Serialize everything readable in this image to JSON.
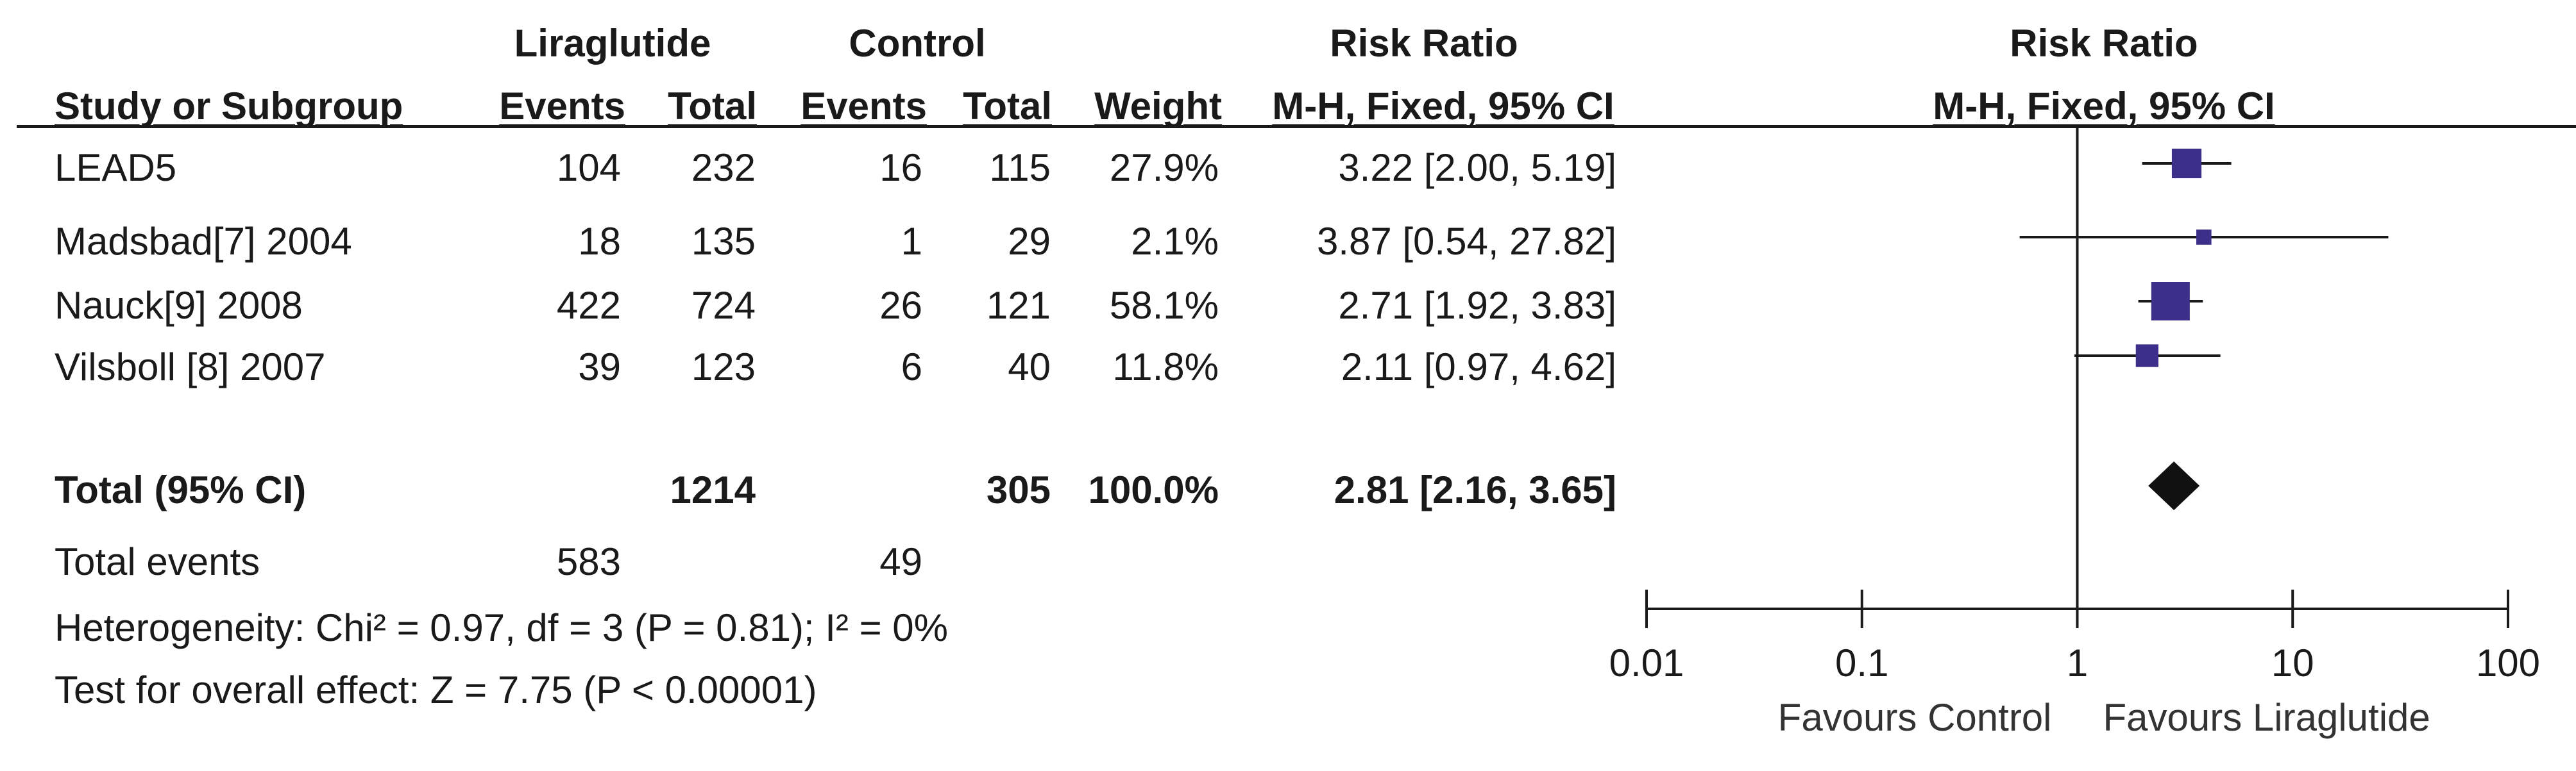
{
  "table": {
    "group_headers": {
      "experimental": "Liraglutide",
      "control": "Control",
      "effect": "Risk Ratio"
    },
    "columns": {
      "study": "Study or Subgroup",
      "exp_events": "Events",
      "exp_total": "Total",
      "ctrl_events": "Events",
      "ctrl_total": "Total",
      "weight": "Weight",
      "effect": "M-H, Fixed, 95% CI"
    },
    "studies": [
      {
        "name": "LEAD5",
        "exp_events": "104",
        "exp_total": "232",
        "ctrl_events": "16",
        "ctrl_total": "115",
        "weight": "27.9%",
        "ci_text": "3.22 [2.00, 5.19]"
      },
      {
        "name": "Madsbad[7] 2004",
        "exp_events": "18",
        "exp_total": "135",
        "ctrl_events": "1",
        "ctrl_total": "29",
        "weight": "2.1%",
        "ci_text": "3.87 [0.54, 27.82]"
      },
      {
        "name": "Nauck[9] 2008",
        "exp_events": "422",
        "exp_total": "724",
        "ctrl_events": "26",
        "ctrl_total": "121",
        "weight": "58.1%",
        "ci_text": "2.71 [1.92, 3.83]"
      },
      {
        "name": "Vilsboll [8] 2007",
        "exp_events": "39",
        "exp_total": "123",
        "ctrl_events": "6",
        "ctrl_total": "40",
        "weight": "11.8%",
        "ci_text": "2.11 [0.97, 4.62]"
      }
    ],
    "total": {
      "label": "Total (95% CI)",
      "exp_total": "1214",
      "ctrl_total": "305",
      "weight": "100.0%",
      "ci_text": "2.81 [2.16, 3.65]"
    },
    "total_events": {
      "label": "Total events",
      "exp_events": "583",
      "ctrl_events": "49"
    },
    "heterogeneity": "Heterogeneity: Chi² = 0.97, df = 3 (P = 0.81); I² = 0%",
    "overall_effect": "Test for overall effect: Z = 7.75 (P < 0.00001)"
  },
  "chart_data": {
    "type": "scatter",
    "subtype": "forest-plot",
    "title": "Risk Ratio",
    "subtitle": "M-H, Fixed, 95% CI",
    "x_scale": "log",
    "xlim": [
      0.01,
      100
    ],
    "x_ticks": [
      0.01,
      0.1,
      1,
      10,
      100
    ],
    "x_tick_labels": [
      "0.01",
      "0.1",
      "1",
      "10",
      "100"
    ],
    "reference_line": 1,
    "favours_left": "Favours Control",
    "favours_right": "Favours Liraglutide",
    "marker_color": "#3b2f8a",
    "summary_color": "#111111",
    "points": [
      {
        "study": "LEAD5",
        "estimate": 3.22,
        "lower": 2.0,
        "upper": 5.19,
        "weight": 27.9
      },
      {
        "study": "Madsbad[7] 2004",
        "estimate": 3.87,
        "lower": 0.54,
        "upper": 27.82,
        "weight": 2.1
      },
      {
        "study": "Nauck[9] 2008",
        "estimate": 2.71,
        "lower": 1.92,
        "upper": 3.83,
        "weight": 58.1
      },
      {
        "study": "Vilsboll [8] 2007",
        "estimate": 2.11,
        "lower": 0.97,
        "upper": 4.62,
        "weight": 11.8
      }
    ],
    "summary": {
      "estimate": 2.81,
      "lower": 2.16,
      "upper": 3.65
    }
  }
}
